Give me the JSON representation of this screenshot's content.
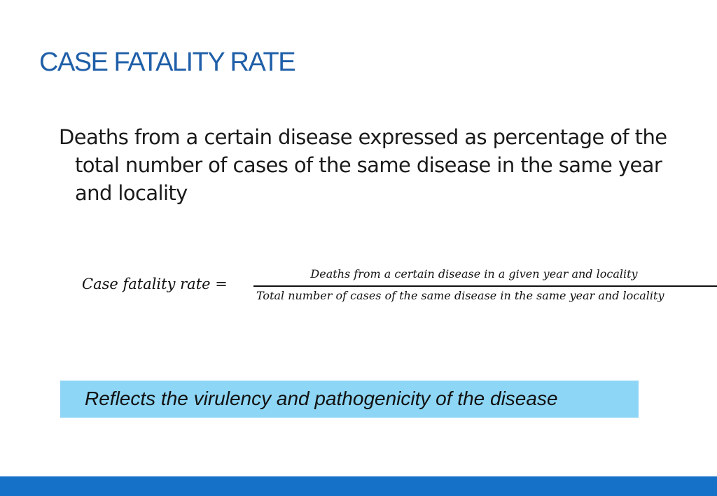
{
  "slide": {
    "title": "CASE FATALITY RATE",
    "definition": "Deaths from a certain disease expressed as percentage of the total number of cases of the same disease in the same year and locality",
    "formula": {
      "lhs": "Case fatality rate =",
      "numerator": "Deaths from a certain disease in a given year and locality",
      "denominator": "Total number of cases of the same disease in the same year and locality"
    },
    "callout": "Reflects the virulency and pathogenicity of the disease"
  },
  "colors": {
    "title": "#1f5fa8",
    "callout_background": "#8ed6f5",
    "footer_bar": "#1570c8"
  }
}
